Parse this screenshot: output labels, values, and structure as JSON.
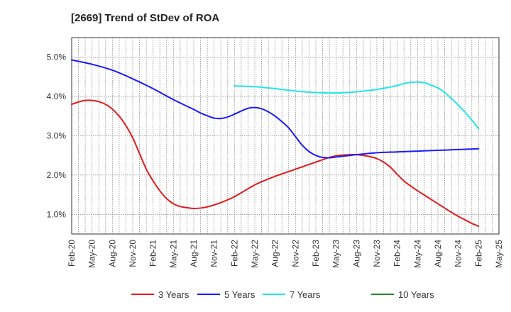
{
  "chart_data": {
    "type": "line",
    "title": "[2669]  Trend of StDev of ROA",
    "xlabel": "",
    "ylabel": "",
    "x_ticks": [
      "Feb-20",
      "May-20",
      "Aug-20",
      "Nov-20",
      "Feb-21",
      "May-21",
      "Aug-21",
      "Nov-21",
      "Feb-22",
      "May-22",
      "Aug-22",
      "Nov-22",
      "Feb-23",
      "May-23",
      "Aug-23",
      "Nov-23",
      "Feb-24",
      "May-24",
      "Aug-24",
      "Nov-24",
      "Feb-25",
      "May-25"
    ],
    "y_ticks": [
      1.0,
      2.0,
      3.0,
      4.0,
      5.0
    ],
    "y_tick_labels": [
      "1.0%",
      "2.0%",
      "3.0%",
      "4.0%",
      "5.0%"
    ],
    "ylim": [
      0.5,
      5.5
    ],
    "grid": true,
    "legend_position": "bottom",
    "series": [
      {
        "name": "3 Years",
        "color": "#e41a1c",
        "x": [
          "Feb-20",
          "Mar-20",
          "Apr-20",
          "May-20",
          "Jun-20",
          "Jul-20",
          "Aug-20",
          "Sep-20",
          "Oct-20",
          "Nov-20",
          "Dec-20",
          "Jan-21",
          "Feb-21",
          "Mar-21",
          "Apr-21",
          "May-21",
          "Jun-21",
          "Jul-21",
          "Aug-21",
          "Sep-21",
          "Oct-21",
          "Nov-21",
          "Dec-21",
          "Jan-22",
          "Feb-22",
          "Mar-22",
          "Apr-22",
          "May-22",
          "Jun-22",
          "Jul-22",
          "Aug-22",
          "Sep-22",
          "Oct-22",
          "Nov-22",
          "Dec-22",
          "Jan-23",
          "Feb-23",
          "Mar-23",
          "Apr-23",
          "May-23",
          "Jun-23",
          "Jul-23",
          "Aug-23",
          "Sep-23",
          "Oct-23",
          "Nov-23",
          "Dec-23",
          "Jan-24",
          "Feb-24",
          "Mar-24",
          "Apr-24",
          "May-24",
          "Jun-24",
          "Jul-24",
          "Aug-24",
          "Sep-24",
          "Oct-24",
          "Nov-24",
          "Dec-24",
          "Jan-25",
          "Feb-25"
        ],
        "values": [
          3.8,
          3.86,
          3.9,
          3.9,
          3.87,
          3.8,
          3.68,
          3.5,
          3.26,
          2.95,
          2.55,
          2.15,
          1.85,
          1.6,
          1.4,
          1.27,
          1.2,
          1.17,
          1.15,
          1.16,
          1.19,
          1.24,
          1.3,
          1.37,
          1.45,
          1.55,
          1.65,
          1.75,
          1.83,
          1.9,
          1.97,
          2.03,
          2.09,
          2.15,
          2.21,
          2.27,
          2.33,
          2.39,
          2.45,
          2.49,
          2.51,
          2.52,
          2.52,
          2.5,
          2.47,
          2.42,
          2.33,
          2.2,
          2.02,
          1.85,
          1.72,
          1.6,
          1.49,
          1.38,
          1.27,
          1.16,
          1.05,
          0.95,
          0.86,
          0.77,
          0.7
        ]
      },
      {
        "name": "5 Years",
        "color": "#1a1aff",
        "x": [
          "Feb-20",
          "May-20",
          "Aug-20",
          "Nov-20",
          "Feb-21",
          "May-21",
          "Aug-21",
          "Sep-21",
          "Oct-21",
          "Nov-21",
          "Dec-21",
          "Jan-22",
          "Feb-22",
          "Mar-22",
          "Apr-22",
          "May-22",
          "Jun-22",
          "Jul-22",
          "Aug-22",
          "Sep-22",
          "Oct-22",
          "Nov-22",
          "Dec-22",
          "Jan-23",
          "Feb-23",
          "Mar-23",
          "Apr-23",
          "May-23",
          "Jun-23",
          "Jul-23",
          "Aug-23",
          "Nov-23",
          "Feb-24",
          "May-24",
          "Aug-24",
          "Nov-24",
          "Feb-25"
        ],
        "values": [
          4.93,
          4.82,
          4.67,
          4.45,
          4.2,
          3.92,
          3.67,
          3.58,
          3.51,
          3.45,
          3.44,
          3.48,
          3.55,
          3.63,
          3.7,
          3.72,
          3.69,
          3.61,
          3.5,
          3.36,
          3.2,
          2.98,
          2.76,
          2.6,
          2.5,
          2.45,
          2.44,
          2.46,
          2.48,
          2.5,
          2.52,
          2.57,
          2.59,
          2.61,
          2.63,
          2.65,
          2.67
        ]
      },
      {
        "name": "7 Years",
        "color": "#22e5e5",
        "x": [
          "Feb-22",
          "May-22",
          "Aug-22",
          "Nov-22",
          "Feb-23",
          "May-23",
          "Aug-23",
          "Nov-23",
          "Feb-24",
          "Mar-24",
          "Apr-24",
          "May-24",
          "Jun-24",
          "Jul-24",
          "Aug-24",
          "Sep-24",
          "Oct-24",
          "Nov-24",
          "Dec-24",
          "Jan-25",
          "Feb-25"
        ],
        "values": [
          4.27,
          4.25,
          4.2,
          4.14,
          4.1,
          4.09,
          4.12,
          4.18,
          4.28,
          4.33,
          4.36,
          4.37,
          4.35,
          4.29,
          4.22,
          4.1,
          3.95,
          3.78,
          3.6,
          3.4,
          3.18
        ]
      },
      {
        "name": "10 Years",
        "color": "#2a8a2a",
        "x": [],
        "values": []
      }
    ]
  }
}
